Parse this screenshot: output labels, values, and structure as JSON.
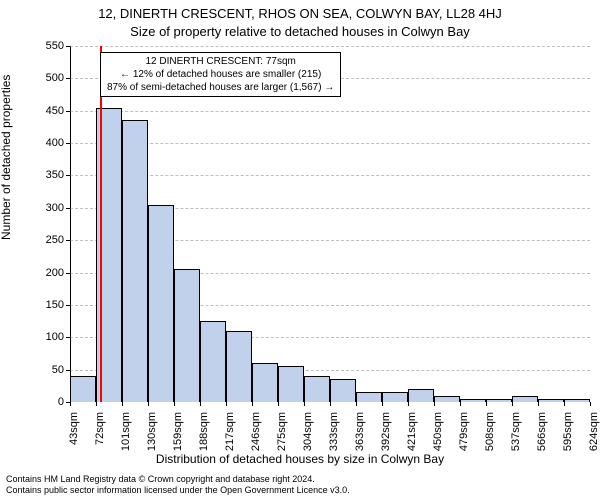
{
  "title_line1": "12, DINERTH CRESCENT, RHOS ON SEA, COLWYN BAY, LL28 4HJ",
  "title_line2": "Size of property relative to detached houses in Colwyn Bay",
  "ylabel": "Number of detached properties",
  "xlabel": "Distribution of detached houses by size in Colwyn Bay",
  "footnote_line1": "Contains HM Land Registry data © Crown copyright and database right 2024.",
  "footnote_line2": "Contains public sector information licensed under the Open Government Licence v3.0.",
  "annotation": {
    "line1": "12 DINERTH CRESCENT: 77sqm",
    "line2": "← 12% of detached houses are smaller (215)",
    "line3": "87% of semi-detached houses are larger (1,567) →"
  },
  "chart": {
    "type": "histogram",
    "background_color": "#ffffff",
    "grid_color": "#808080",
    "bar_fill": "#c2d1eb",
    "bar_border": "#000000",
    "axis_fontsize": 11,
    "label_fontsize": 12,
    "title_fontsize": 13,
    "ylim": [
      0,
      550
    ],
    "ytick_step": 50,
    "marker": {
      "value_sqm": 77,
      "color": "#ff0000"
    },
    "x_tick_labels": [
      "43sqm",
      "72sqm",
      "101sqm",
      "130sqm",
      "159sqm",
      "188sqm",
      "217sqm",
      "246sqm",
      "275sqm",
      "304sqm",
      "333sqm",
      "363sqm",
      "392sqm",
      "421sqm",
      "450sqm",
      "479sqm",
      "508sqm",
      "537sqm",
      "566sqm",
      "595sqm",
      "624sqm"
    ],
    "bar_values": [
      40,
      455,
      435,
      305,
      205,
      125,
      110,
      60,
      55,
      40,
      35,
      15,
      15,
      20,
      10,
      5,
      5,
      10,
      5,
      5
    ]
  }
}
